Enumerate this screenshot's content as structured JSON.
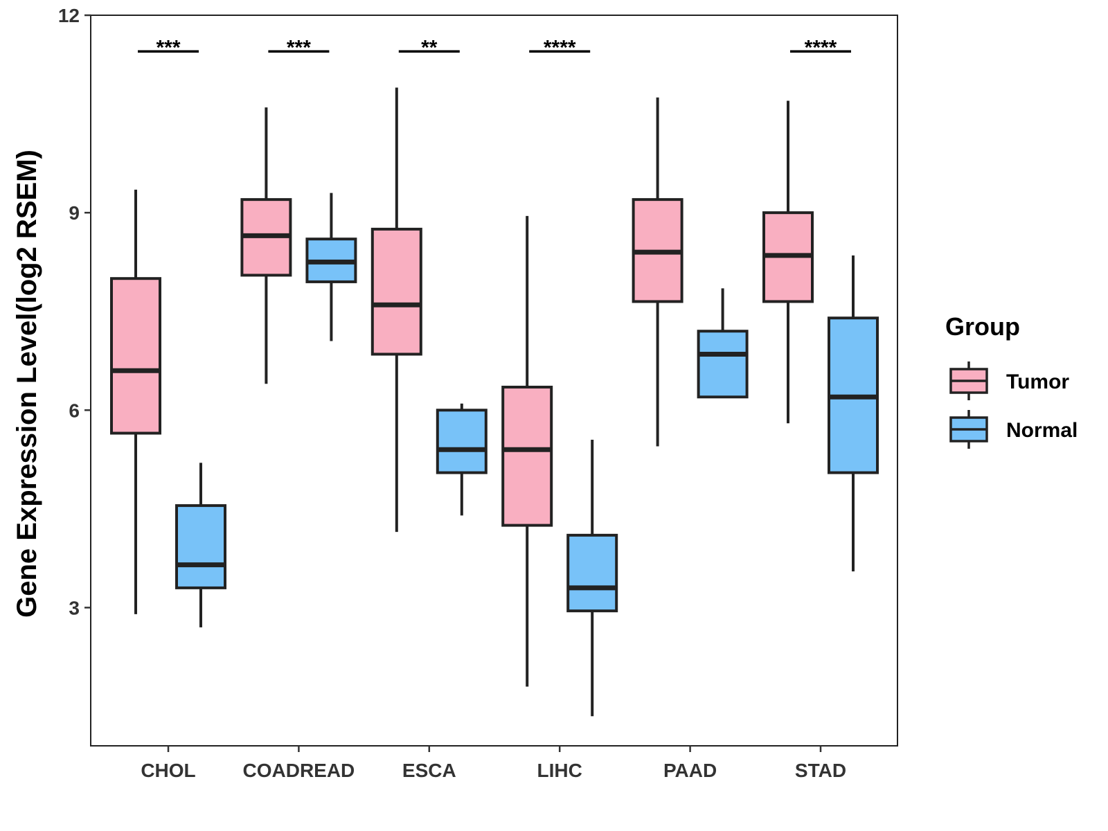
{
  "chart_data": {
    "type": "box",
    "title": "",
    "xlabel": "",
    "ylabel": "Gene Expression Level(log2 RSEM)",
    "ylim": [
      0.9,
      12
    ],
    "yticks": [
      3,
      6,
      9,
      12
    ],
    "categories": [
      "CHOL",
      "COADREAD",
      "ESCA",
      "LIHC",
      "PAAD",
      "STAD"
    ],
    "legend": {
      "title": "Group",
      "position": "right"
    },
    "series": [
      {
        "name": "Tumor",
        "color": "#F9AFC1",
        "boxes": [
          {
            "category": "CHOL",
            "min": 2.9,
            "q1": 5.65,
            "median": 6.6,
            "q3": 8.0,
            "max": 9.35
          },
          {
            "category": "COADREAD",
            "min": 6.4,
            "q1": 8.05,
            "median": 8.65,
            "q3": 9.2,
            "max": 10.6
          },
          {
            "category": "ESCA",
            "min": 4.15,
            "q1": 6.85,
            "median": 7.6,
            "q3": 8.75,
            "max": 10.9
          },
          {
            "category": "LIHC",
            "min": 1.8,
            "q1": 4.25,
            "median": 5.4,
            "q3": 6.35,
            "max": 8.95
          },
          {
            "category": "PAAD",
            "min": 5.45,
            "q1": 7.65,
            "median": 8.4,
            "q3": 9.2,
            "max": 10.75
          },
          {
            "category": "STAD",
            "min": 5.8,
            "q1": 7.65,
            "median": 8.35,
            "q3": 9.0,
            "max": 10.7
          }
        ]
      },
      {
        "name": "Normal",
        "color": "#78C2F8",
        "boxes": [
          {
            "category": "CHOL",
            "min": 2.7,
            "q1": 3.3,
            "median": 3.65,
            "q3": 4.55,
            "max": 5.2
          },
          {
            "category": "COADREAD",
            "min": 7.05,
            "q1": 7.95,
            "median": 8.25,
            "q3": 8.6,
            "max": 9.3
          },
          {
            "category": "ESCA",
            "min": 4.4,
            "q1": 5.05,
            "median": 5.4,
            "q3": 6.0,
            "max": 6.1
          },
          {
            "category": "LIHC",
            "min": 1.35,
            "q1": 2.95,
            "median": 3.3,
            "q3": 4.1,
            "max": 5.55
          },
          {
            "category": "PAAD",
            "min": 6.2,
            "q1": 6.2,
            "median": 6.85,
            "q3": 7.2,
            "max": 7.85
          },
          {
            "category": "STAD",
            "min": 3.55,
            "q1": 5.05,
            "median": 6.2,
            "q3": 7.4,
            "max": 8.35
          }
        ]
      }
    ],
    "significance": [
      {
        "category": "CHOL",
        "label": "***"
      },
      {
        "category": "COADREAD",
        "label": "***"
      },
      {
        "category": "ESCA",
        "label": "**"
      },
      {
        "category": "LIHC",
        "label": "****"
      },
      {
        "category": "PAAD",
        "label": ""
      },
      {
        "category": "STAD",
        "label": "****"
      }
    ],
    "significance_y": 11.45
  }
}
